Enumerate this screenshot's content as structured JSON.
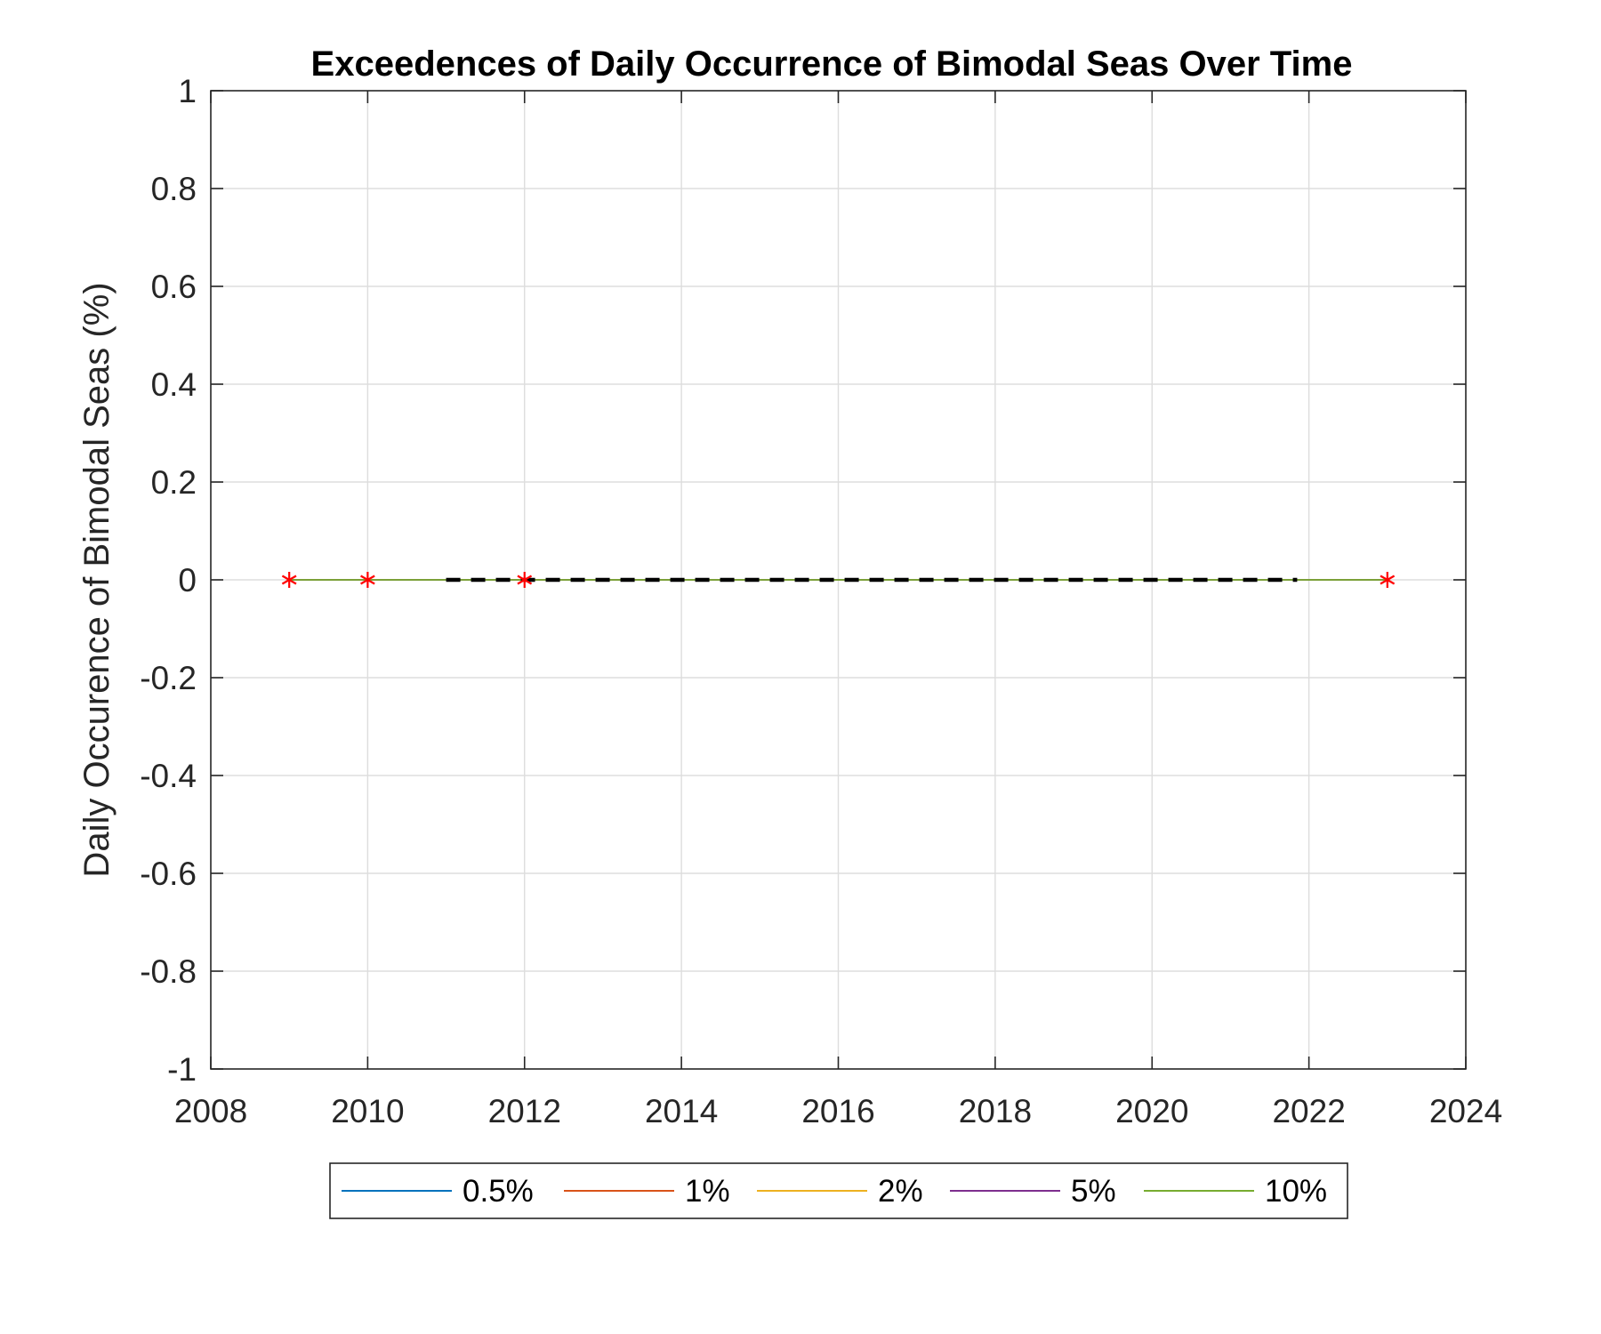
{
  "chart_data": {
    "type": "line",
    "title": "Exceedences of Daily Occurrence of Bimodal Seas Over Time",
    "xlabel": "",
    "ylabel": "Daily Occurence of Bimodal Seas (%)",
    "xlim": [
      2008,
      2024
    ],
    "ylim": [
      -1,
      1
    ],
    "xticks": [
      "2008",
      "2010",
      "2012",
      "2014",
      "2016",
      "2018",
      "2020",
      "2022",
      "2024"
    ],
    "yticks": [
      "1",
      "0.8",
      "0.6",
      "0.4",
      "0.2",
      "0",
      "-0.2",
      "-0.4",
      "-0.6",
      "-0.8",
      "-1"
    ],
    "grid": true,
    "legend_position": "bottom-outside",
    "series": [
      {
        "name": "0.5%",
        "color": "#0072BD",
        "x": [
          2009,
          2010,
          2012,
          2023
        ],
        "y": [
          0,
          0,
          0,
          0
        ]
      },
      {
        "name": "1%",
        "color": "#D95319",
        "x": [
          2009,
          2010,
          2012,
          2023
        ],
        "y": [
          0,
          0,
          0,
          0
        ]
      },
      {
        "name": "2%",
        "color": "#EDB120",
        "x": [
          2009,
          2010,
          2012,
          2023
        ],
        "y": [
          0,
          0,
          0,
          0
        ]
      },
      {
        "name": "5%",
        "color": "#7E2F8E",
        "x": [
          2009,
          2010,
          2012,
          2023
        ],
        "y": [
          0,
          0,
          0,
          0
        ]
      },
      {
        "name": "10%",
        "color": "#77AC30",
        "x": [
          2009,
          2010,
          2012,
          2023
        ],
        "y": [
          0,
          0,
          0,
          0
        ]
      }
    ],
    "markers": {
      "color": "#FF0000",
      "symbol": "asterisk",
      "x": [
        2009,
        2010,
        2012,
        2023
      ],
      "y": [
        0,
        0,
        0,
        0
      ]
    },
    "dashed_line": {
      "color": "#000000",
      "x": [
        2011,
        2021.85
      ],
      "y": [
        0,
        0
      ]
    }
  }
}
